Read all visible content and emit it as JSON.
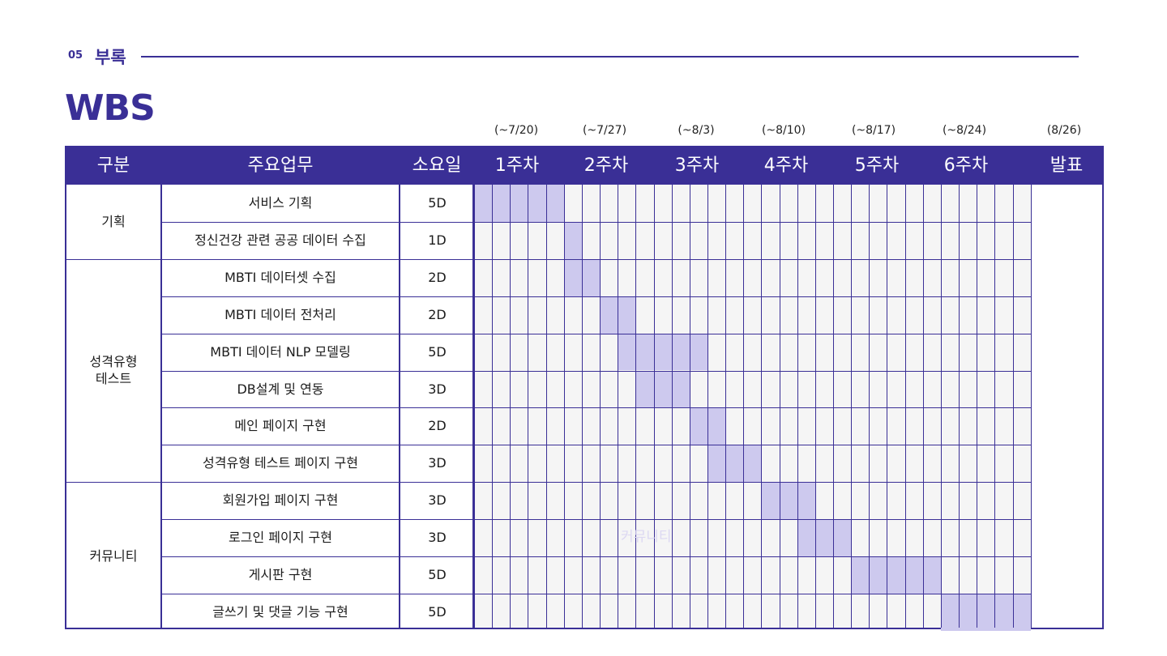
{
  "section": {
    "number": "05",
    "title": "부록"
  },
  "title": "WBS",
  "dates": [
    "(~7/20)",
    "(~7/27)",
    "(~8/3)",
    "(~8/10)",
    "(~8/17)",
    "(~8/24)",
    "(8/26)"
  ],
  "header": {
    "category": "구분",
    "task": "주요업무",
    "duration": "소요일",
    "weeks": [
      "1주차",
      "2주차",
      "3주차",
      "4주차",
      "5주차",
      "6주차"
    ],
    "final": "발표"
  },
  "categories": [
    {
      "label": "기획",
      "rows": 2
    },
    {
      "label": "성격유형\n테스트",
      "rows": 6
    },
    {
      "label": "커뮤니티",
      "rows": 4
    }
  ],
  "tasks": [
    {
      "name": "서비스 기획",
      "duration": "5D",
      "start_day": 1,
      "days": 5
    },
    {
      "name": "정신건강 관련 공공 데이터 수집",
      "duration": "1D",
      "start_day": 6,
      "days": 1
    },
    {
      "name": "MBTI 데이터셋 수집",
      "duration": "2D",
      "start_day": 6,
      "days": 2
    },
    {
      "name": "MBTI 데이터 전처리",
      "duration": "2D",
      "start_day": 8,
      "days": 2
    },
    {
      "name": "MBTI 데이터 NLP 모델링",
      "duration": "5D",
      "start_day": 9,
      "days": 5
    },
    {
      "name": "DB설계 및 연동",
      "duration": "3D",
      "start_day": 10,
      "days": 3
    },
    {
      "name": "메인 페이지 구현",
      "duration": "2D",
      "start_day": 13,
      "days": 2
    },
    {
      "name": "성격유형 테스트 페이지 구현",
      "duration": "3D",
      "start_day": 14,
      "days": 3
    },
    {
      "name": "회원가입 페이지 구현",
      "duration": "3D",
      "start_day": 17,
      "days": 3
    },
    {
      "name": "로그인 페이지 구현",
      "duration": "3D",
      "start_day": 19,
      "days": 3
    },
    {
      "name": "게시판 구현",
      "duration": "5D",
      "start_day": 22,
      "days": 5
    },
    {
      "name": "글쓰기 및 댓글 기능 구현",
      "duration": "5D",
      "start_day": 27,
      "days": 5
    }
  ],
  "watermark": "커뮤니티",
  "colors": {
    "accent": "#3a2f96",
    "bar": "#cdc9ee",
    "cell_bg": "#f5f5f5"
  }
}
